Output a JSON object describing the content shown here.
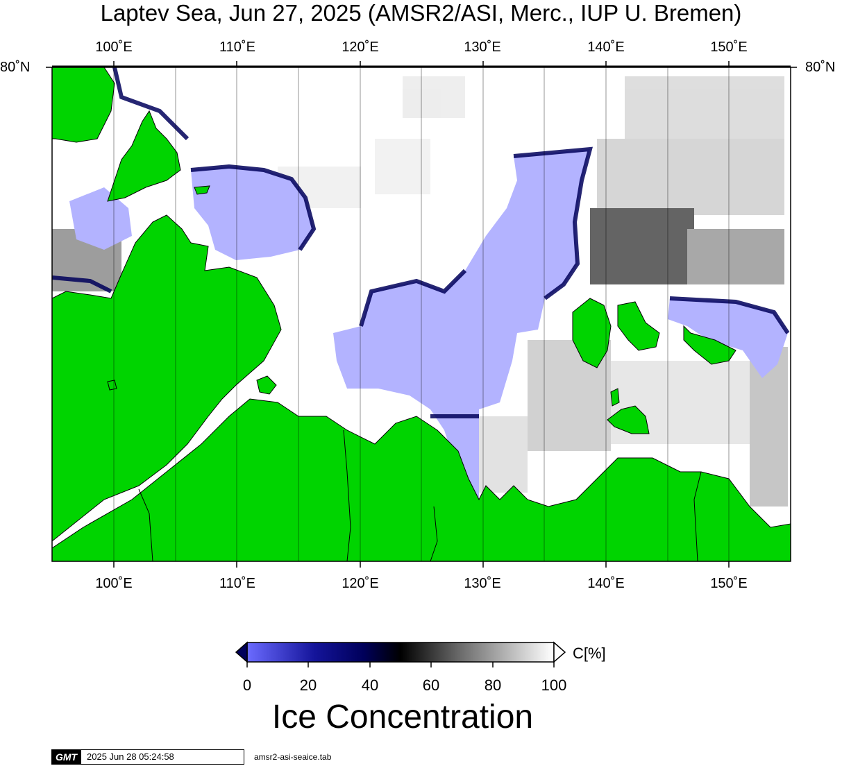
{
  "title": "Laptev Sea, Jun 27, 2025 (AMSR2/ASI, Merc., IUP U. Bremen)",
  "map": {
    "lon_range": [
      95,
      155
    ],
    "lat_top": 80,
    "lon_ticks": [
      {
        "value": 100,
        "label": "100˚E"
      },
      {
        "value": 110,
        "label": "110˚E"
      },
      {
        "value": 120,
        "label": "120˚E"
      },
      {
        "value": 130,
        "label": "130˚E"
      },
      {
        "value": 140,
        "label": "140˚E"
      },
      {
        "value": 150,
        "label": "150˚E"
      }
    ],
    "lat_label_left": "80˚N",
    "lat_label_right": "80˚N",
    "colors": {
      "land": "#00d400",
      "open_water": "#b3b3ff",
      "ice": "#ffffff",
      "coast": "#000000"
    }
  },
  "colorbar": {
    "unit": "C[%]",
    "ticks": [
      "0",
      "20",
      "40",
      "60",
      "80",
      "100"
    ],
    "stops": [
      "#6b6bff",
      "#00005a",
      "#000000",
      "#787878",
      "#ffffff"
    ],
    "title": "Ice Concentration"
  },
  "footer": {
    "logo": "GMT",
    "timestamp": "2025 Jun 28 05:24:58",
    "source": "amsr2-asi-seaice.tab"
  }
}
